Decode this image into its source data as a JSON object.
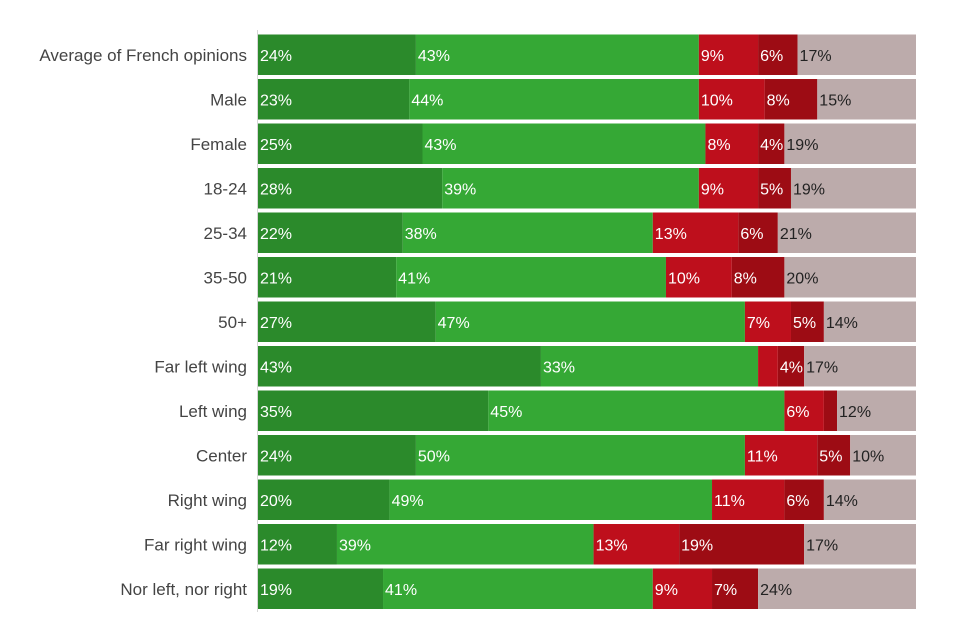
{
  "chart_data": {
    "type": "bar",
    "orientation": "horizontal",
    "stacked": true,
    "normalized": true,
    "xlim": [
      0,
      100
    ],
    "grid": false,
    "legend": "none",
    "categories": [
      "Average of French opinions",
      "Male",
      "Female",
      "18-24",
      "25-34",
      "35-50",
      "50+",
      "Far left wing",
      "Left wing",
      "Center",
      "Right wing",
      "Far right wing",
      "Nor left, nor right"
    ],
    "series": [
      {
        "name": "segment-1",
        "color": "#2b8a2b",
        "label_color": "#ffffff",
        "values": [
          24,
          23,
          25,
          28,
          22,
          21,
          27,
          43,
          35,
          24,
          20,
          12,
          19
        ],
        "labels": [
          "24%",
          "23%",
          "25%",
          "28%",
          "22%",
          "21%",
          "27%",
          "43%",
          "35%",
          "24%",
          "20%",
          "12%",
          "19%"
        ]
      },
      {
        "name": "segment-2",
        "color": "#35a835",
        "label_color": "#ffffff",
        "values": [
          43,
          44,
          43,
          39,
          38,
          41,
          47,
          33,
          45,
          50,
          49,
          39,
          41
        ],
        "labels": [
          "43%",
          "44%",
          "43%",
          "39%",
          "38%",
          "41%",
          "47%",
          "33%",
          "45%",
          "50%",
          "49%",
          "39%",
          "41%"
        ]
      },
      {
        "name": "segment-3",
        "color": "#be0f1c",
        "label_color": "#ffffff",
        "values": [
          9,
          10,
          8,
          9,
          13,
          10,
          7,
          3,
          6,
          11,
          11,
          13,
          9
        ],
        "labels": [
          "9%",
          "10%",
          "8%",
          "9%",
          "13%",
          "10%",
          "7%",
          "",
          "6%",
          "11%",
          "11%",
          "13%",
          "9%"
        ]
      },
      {
        "name": "segment-4",
        "color": "#9d0c14",
        "label_color": "#ffffff",
        "values": [
          6,
          8,
          4,
          5,
          6,
          8,
          5,
          4,
          2,
          5,
          6,
          19,
          7
        ],
        "labels": [
          "6%",
          "8%",
          "4%",
          "5%",
          "6%",
          "8%",
          "5%",
          "4%",
          "",
          "5%",
          "6%",
          "19%",
          "7%"
        ]
      },
      {
        "name": "segment-5",
        "color": "#bcabab",
        "label_color": "#222222",
        "values": [
          17,
          15,
          19,
          19,
          21,
          20,
          14,
          17,
          12,
          10,
          14,
          17,
          24
        ],
        "labels": [
          "17%",
          "15%",
          "19%",
          "19%",
          "21%",
          "20%",
          "14%",
          "17%",
          "12%",
          "10%",
          "14%",
          "17%",
          "24%"
        ]
      }
    ]
  }
}
